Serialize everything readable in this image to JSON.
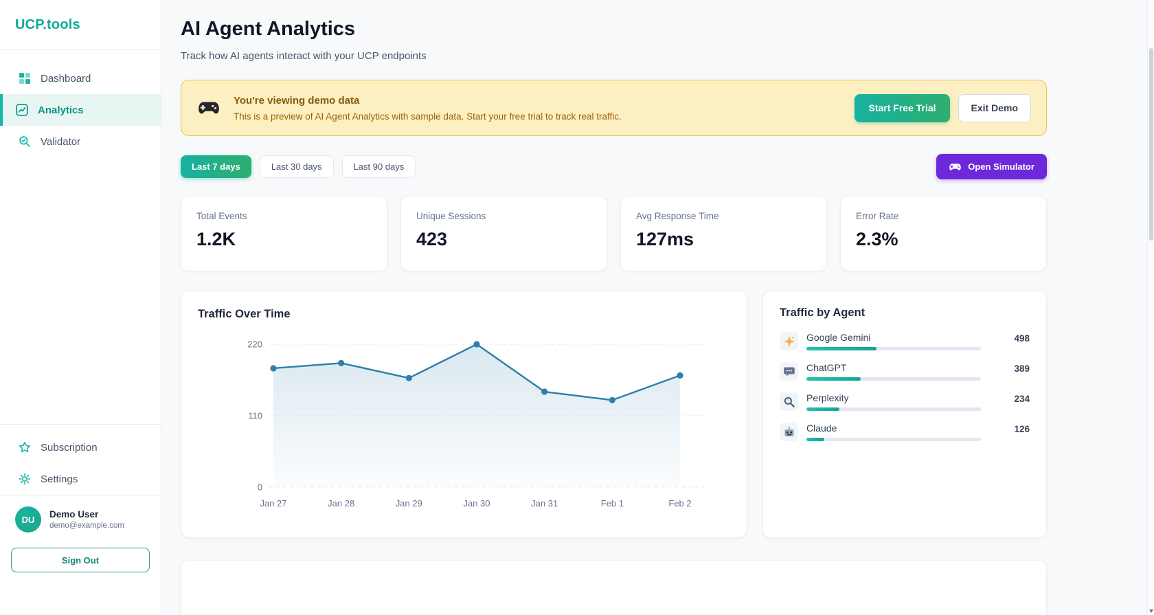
{
  "app": {
    "logo": "UCP.tools"
  },
  "sidebar": {
    "nav": [
      {
        "label": "Dashboard"
      },
      {
        "label": "Analytics"
      },
      {
        "label": "Validator"
      }
    ],
    "secondary": [
      {
        "label": "Subscription"
      },
      {
        "label": "Settings"
      }
    ],
    "user": {
      "initials": "DU",
      "name": "Demo User",
      "email": "demo@example.com"
    },
    "signout_label": "Sign Out"
  },
  "header": {
    "title": "AI Agent Analytics",
    "subtitle": "Track how AI agents interact with your UCP endpoints"
  },
  "demo_banner": {
    "title": "You're viewing demo data",
    "message": "This is a preview of AI Agent Analytics with sample data. Start your free trial to track real traffic.",
    "primary_button": "Start Free Trial",
    "secondary_button": "Exit Demo"
  },
  "toolbar": {
    "ranges": [
      {
        "label": "Last 7 days"
      },
      {
        "label": "Last 30 days"
      },
      {
        "label": "Last 90 days"
      }
    ],
    "active_range": "Last 7 days",
    "simulator_button": "Open Simulator"
  },
  "stats": [
    {
      "label": "Total Events",
      "value": "1.2K"
    },
    {
      "label": "Unique Sessions",
      "value": "423"
    },
    {
      "label": "Avg Response Time",
      "value": "127ms"
    },
    {
      "label": "Error Rate",
      "value": "2.3%"
    }
  ],
  "chart_data": [
    {
      "type": "line",
      "title": "Traffic Over Time",
      "x": [
        "Jan 27",
        "Jan 28",
        "Jan 29",
        "Jan 30",
        "Jan 31",
        "Feb 1",
        "Feb 2"
      ],
      "values": [
        183,
        191,
        168,
        220,
        147,
        134,
        172
      ],
      "ylim": [
        0,
        220
      ],
      "yticks": [
        0,
        110,
        220
      ],
      "grid": "dashed-horizontal",
      "legend": "none",
      "line_color": "#2e7fab",
      "area_fill": true,
      "markers": true
    },
    {
      "type": "bar",
      "title": "Traffic by Agent",
      "orientation": "horizontal",
      "categories": [
        "Google Gemini",
        "ChatGPT",
        "Perplexity",
        "Claude"
      ],
      "values": [
        498,
        389,
        234,
        126
      ],
      "icons": [
        "sparkle-icon",
        "chat-bubble-icon",
        "magnifier-icon",
        "robot-icon"
      ],
      "bar_color": "#14b8a6",
      "bar_scale": "share-of-total"
    }
  ],
  "colors": {
    "accent_teal": "#14b8a6",
    "accent_green": "#2fae6f",
    "banner_bg": "#fcefc2",
    "banner_border": "#f0c24b",
    "simulator_purple": "#6d28d9",
    "line_blue": "#2e7fab",
    "page_bg": "#f7f9fb"
  }
}
